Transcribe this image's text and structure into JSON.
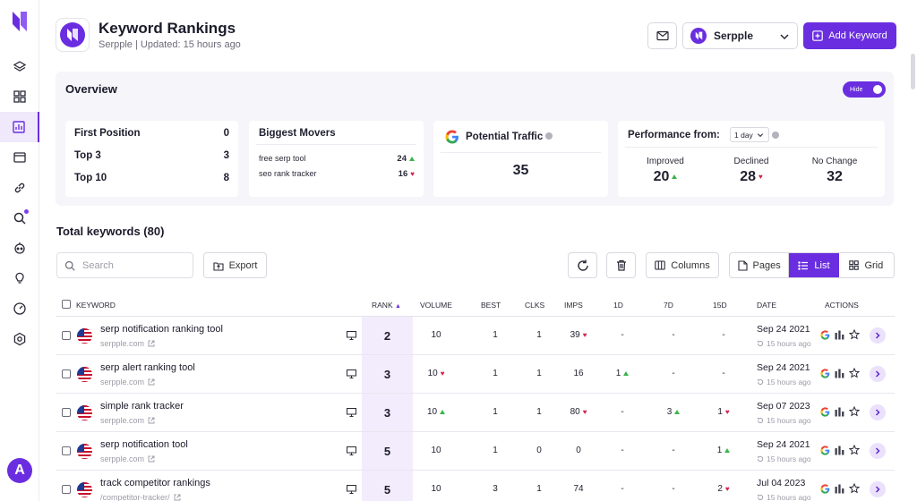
{
  "header": {
    "title": "Keyword Rankings",
    "subtitle": "Serpple | Updated: 15 hours ago",
    "project": "Serpple",
    "add_keyword_label": "Add Keyword"
  },
  "overview": {
    "title": "Overview",
    "toggle_label": "Hide",
    "positions": [
      {
        "label": "First Position",
        "value": "0"
      },
      {
        "label": "Top 3",
        "value": "3"
      },
      {
        "label": "Top 10",
        "value": "8"
      }
    ],
    "movers": {
      "title": "Biggest Movers",
      "items": [
        {
          "keyword": "free serp tool",
          "value": "24",
          "trend": "up"
        },
        {
          "keyword": "seo rank tracker",
          "value": "16",
          "trend": "down"
        }
      ]
    },
    "traffic": {
      "title": "Potential Traffic",
      "value": "35"
    },
    "performance": {
      "title": "Performance from:",
      "period": "1 day",
      "improved_label": "Improved",
      "improved": "20",
      "declined_label": "Declined",
      "declined": "28",
      "nochange_label": "No Change",
      "nochange": "32"
    }
  },
  "toolbar": {
    "total": "Total keywords (80)",
    "search_placeholder": "Search",
    "export_label": "Export",
    "columns_label": "Columns",
    "pages_label": "Pages",
    "list_label": "List",
    "grid_label": "Grid"
  },
  "table": {
    "headers": {
      "keyword": "KEYWORD",
      "rank": "RANK",
      "volume": "VOLUME",
      "best": "BEST",
      "clks": "CLKS",
      "imps": "IMPS",
      "d1": "1D",
      "d7": "7D",
      "d15": "15D",
      "date": "DATE",
      "actions": "ACTIONS"
    },
    "rows": [
      {
        "keyword": "serp notification ranking tool",
        "url": "serpple.com",
        "rank": "2",
        "volume": "10",
        "volume_trend": "",
        "best": "1",
        "clks": "1",
        "imps": "39",
        "imps_trend": "down",
        "d1": "-",
        "d1_trend": "",
        "d7": "-",
        "d7_trend": "",
        "d15": "-",
        "d15_trend": "",
        "date": "Sep 24 2021",
        "ago": "15 hours ago"
      },
      {
        "keyword": "serp alert ranking tool",
        "url": "serpple.com",
        "rank": "3",
        "volume": "10",
        "volume_trend": "down",
        "best": "1",
        "clks": "1",
        "imps": "16",
        "imps_trend": "",
        "d1": "1",
        "d1_trend": "up",
        "d7": "-",
        "d7_trend": "",
        "d15": "-",
        "d15_trend": "",
        "date": "Sep 24 2021",
        "ago": "15 hours ago"
      },
      {
        "keyword": "simple rank tracker",
        "url": "serpple.com",
        "rank": "3",
        "volume": "10",
        "volume_trend": "up",
        "best": "1",
        "clks": "1",
        "imps": "80",
        "imps_trend": "down",
        "d1": "-",
        "d1_trend": "",
        "d7": "3",
        "d7_trend": "up",
        "d15": "1",
        "d15_trend": "down",
        "date": "Sep 07 2023",
        "ago": "15 hours ago"
      },
      {
        "keyword": "serp notification tool",
        "url": "serpple.com",
        "rank": "5",
        "volume": "10",
        "volume_trend": "",
        "best": "1",
        "clks": "0",
        "imps": "0",
        "imps_trend": "",
        "d1": "-",
        "d1_trend": "",
        "d7": "-",
        "d7_trend": "",
        "d15": "1",
        "d15_trend": "up",
        "date": "Sep 24 2021",
        "ago": "15 hours ago"
      },
      {
        "keyword": "track competitor rankings",
        "url": "/competitor-tracker/",
        "rank": "5",
        "volume": "10",
        "volume_trend": "",
        "best": "3",
        "clks": "1",
        "imps": "74",
        "imps_trend": "",
        "d1": "-",
        "d1_trend": "",
        "d7": "-",
        "d7_trend": "",
        "d15": "2",
        "d15_trend": "down",
        "date": "Jul 04 2023",
        "ago": "15 hours ago"
      }
    ]
  },
  "sidebar": {
    "avatar_letter": "A",
    "icons": [
      "layers-icon",
      "dashboard-icon",
      "rankings-icon",
      "browser-icon",
      "link-icon",
      "search-icon",
      "bot-icon",
      "lightbulb-icon",
      "gauge-icon",
      "settings-icon"
    ]
  },
  "colors": {
    "accent": "#6a2ee0",
    "up": "#3bb54a",
    "down": "#d6204b"
  }
}
